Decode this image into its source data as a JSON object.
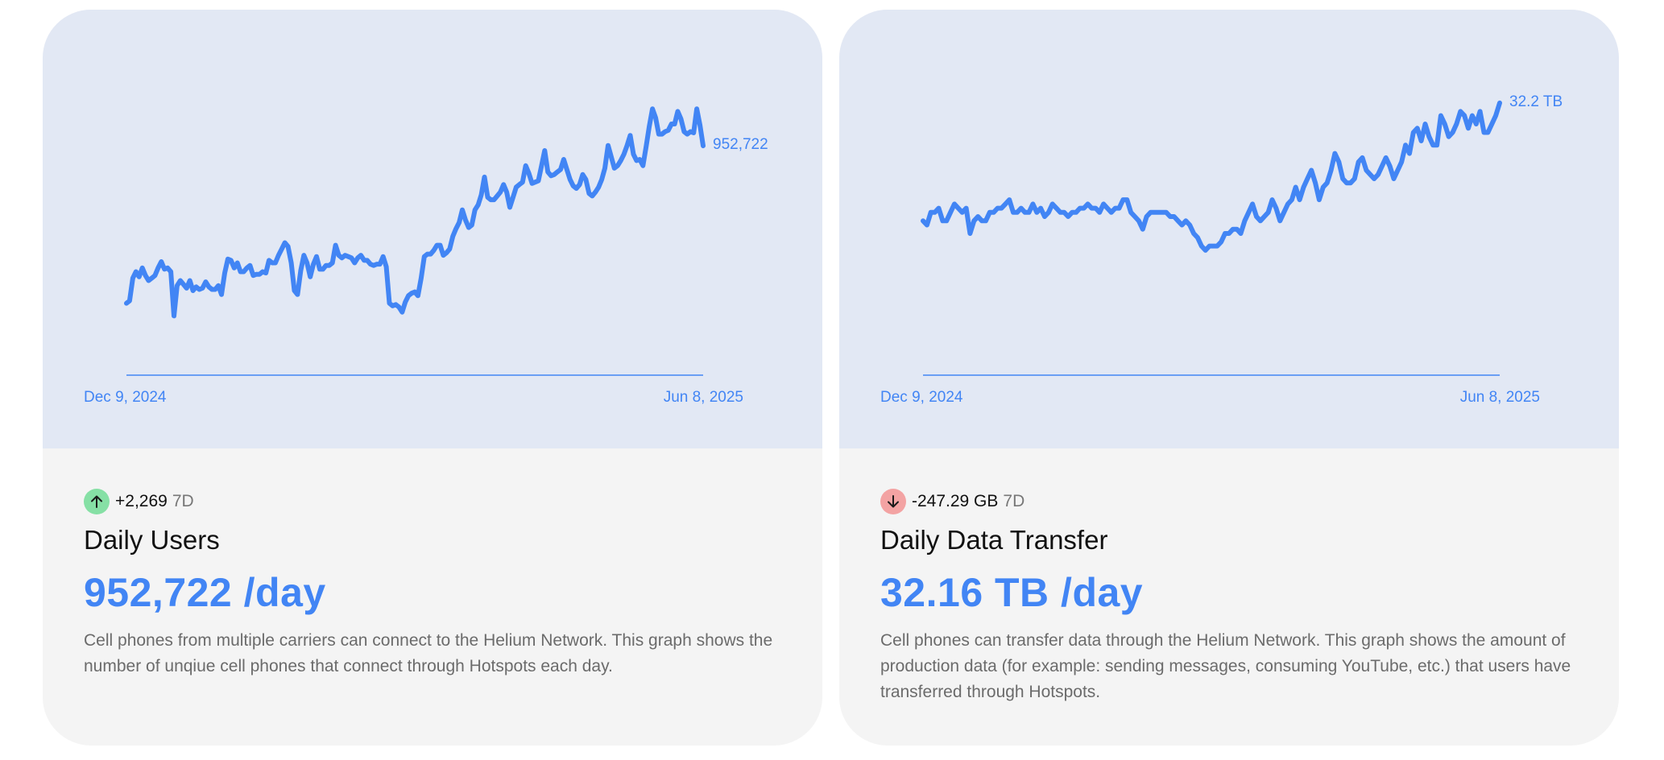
{
  "cards": [
    {
      "chart_data": {
        "type": "line",
        "x_start": "Dec 9, 2024",
        "x_end": "Jun 8, 2025",
        "end_value_label": "952,722",
        "color": "#4285f4",
        "y_unit": "users",
        "ylim": [
          780000,
          1000000
        ],
        "y": [
          828000,
          830000,
          848000,
          853000,
          849000,
          856000,
          850000,
          846000,
          848000,
          850000,
          856000,
          861000,
          855000,
          856000,
          853000,
          818000,
          842000,
          846000,
          843000,
          840000,
          846000,
          838000,
          841000,
          839000,
          840000,
          845000,
          841000,
          839000,
          839000,
          842000,
          835000,
          852000,
          863000,
          862000,
          856000,
          860000,
          853000,
          853000,
          856000,
          858000,
          850000,
          851000,
          851000,
          853000,
          852000,
          862000,
          860000,
          860000,
          866000,
          871000,
          876000,
          873000,
          860000,
          838000,
          835000,
          854000,
          866000,
          860000,
          849000,
          859000,
          865000,
          855000,
          855000,
          858000,
          858000,
          860000,
          874000,
          866000,
          864000,
          866000,
          865000,
          864000,
          860000,
          864000,
          866000,
          862000,
          862000,
          859000,
          858000,
          859000,
          859000,
          865000,
          857000,
          828000,
          826000,
          827000,
          825000,
          821000,
          829000,
          834000,
          836000,
          837000,
          834000,
          848000,
          865000,
          867000,
          867000,
          870000,
          874000,
          874000,
          866000,
          868000,
          871000,
          881000,
          887000,
          892000,
          902000,
          894000,
          888000,
          890000,
          902000,
          906000,
          914000,
          928000,
          912000,
          910000,
          910000,
          913000,
          916000,
          922000,
          916000,
          904000,
          912000,
          920000,
          922000,
          924000,
          937000,
          931000,
          923000,
          924000,
          925000,
          937000,
          949000,
          932000,
          929000,
          930000,
          932000,
          934000,
          942000,
          934000,
          926000,
          921000,
          919000,
          922000,
          930000,
          926000,
          915000,
          913000,
          916000,
          920000,
          926000,
          935000,
          953000,
          944000,
          935000,
          937000,
          941000,
          946000,
          953000,
          961000,
          946000,
          941000,
          942000,
          937000,
          952000,
          968000,
          982000,
          975000,
          962000,
          962000,
          964000,
          965000,
          970000,
          970000,
          980000,
          974000,
          964000,
          962000,
          964000,
          963000,
          982000,
          969000,
          952722
        ]
      },
      "change_value": "+2,269",
      "change_period": "7D",
      "change_icon": "arrow-up-icon",
      "title": "Daily Users",
      "metric": "952,722 /day",
      "description": "Cell phones from multiple carriers can connect to the Helium Network. This graph shows the number of unqiue cell phones that connect through Hotspots each day."
    },
    {
      "chart_data": {
        "type": "line",
        "x_start": "Dec 9, 2024",
        "x_end": "Jun 8, 2025",
        "end_value_label": "32.2 TB",
        "color": "#4285f4",
        "y_unit": "TB",
        "ylim": [
          26.0,
          32.6
        ],
        "y": [
          29.4,
          29.3,
          29.6,
          29.6,
          29.7,
          29.4,
          29.4,
          29.6,
          29.8,
          29.7,
          29.6,
          29.7,
          29.1,
          29.4,
          29.5,
          29.4,
          29.4,
          29.6,
          29.6,
          29.7,
          29.7,
          29.8,
          29.9,
          29.6,
          29.6,
          29.7,
          29.6,
          29.6,
          29.8,
          29.6,
          29.7,
          29.5,
          29.6,
          29.8,
          29.7,
          29.6,
          29.6,
          29.5,
          29.6,
          29.6,
          29.7,
          29.7,
          29.8,
          29.7,
          29.7,
          29.6,
          29.8,
          29.7,
          29.6,
          29.7,
          29.7,
          29.9,
          29.9,
          29.6,
          29.5,
          29.4,
          29.2,
          29.5,
          29.6,
          29.6,
          29.6,
          29.6,
          29.6,
          29.5,
          29.5,
          29.4,
          29.3,
          29.4,
          29.3,
          29.1,
          29.0,
          28.8,
          28.7,
          28.8,
          28.8,
          28.8,
          28.9,
          29.1,
          29.1,
          29.2,
          29.2,
          29.1,
          29.4,
          29.6,
          29.8,
          29.5,
          29.4,
          29.5,
          29.6,
          29.9,
          29.7,
          29.4,
          29.6,
          29.8,
          29.9,
          30.2,
          29.9,
          30.2,
          30.4,
          30.6,
          30.3,
          29.9,
          30.2,
          30.3,
          30.6,
          31.0,
          30.8,
          30.4,
          30.3,
          30.3,
          30.4,
          30.8,
          30.9,
          30.6,
          30.5,
          30.4,
          30.5,
          30.7,
          30.9,
          30.7,
          30.4,
          30.6,
          30.8,
          31.2,
          31.0,
          31.5,
          31.6,
          31.3,
          31.7,
          31.4,
          31.2,
          31.2,
          31.9,
          31.7,
          31.4,
          31.5,
          31.7,
          32.0,
          31.9,
          31.6,
          31.9,
          31.7,
          32.0,
          31.5,
          31.5,
          31.7,
          31.9,
          32.2
        ]
      },
      "change_value": "-247.29 GB",
      "change_period": "7D",
      "change_icon": "arrow-down-icon",
      "title": "Daily Data Transfer",
      "metric": "32.16 TB /day",
      "description": "Cell phones can transfer data through the Helium Network. This graph shows the amount of production data (for example: sending messages, consuming YouTube, etc.) that users have transferred through Hotspots."
    }
  ]
}
